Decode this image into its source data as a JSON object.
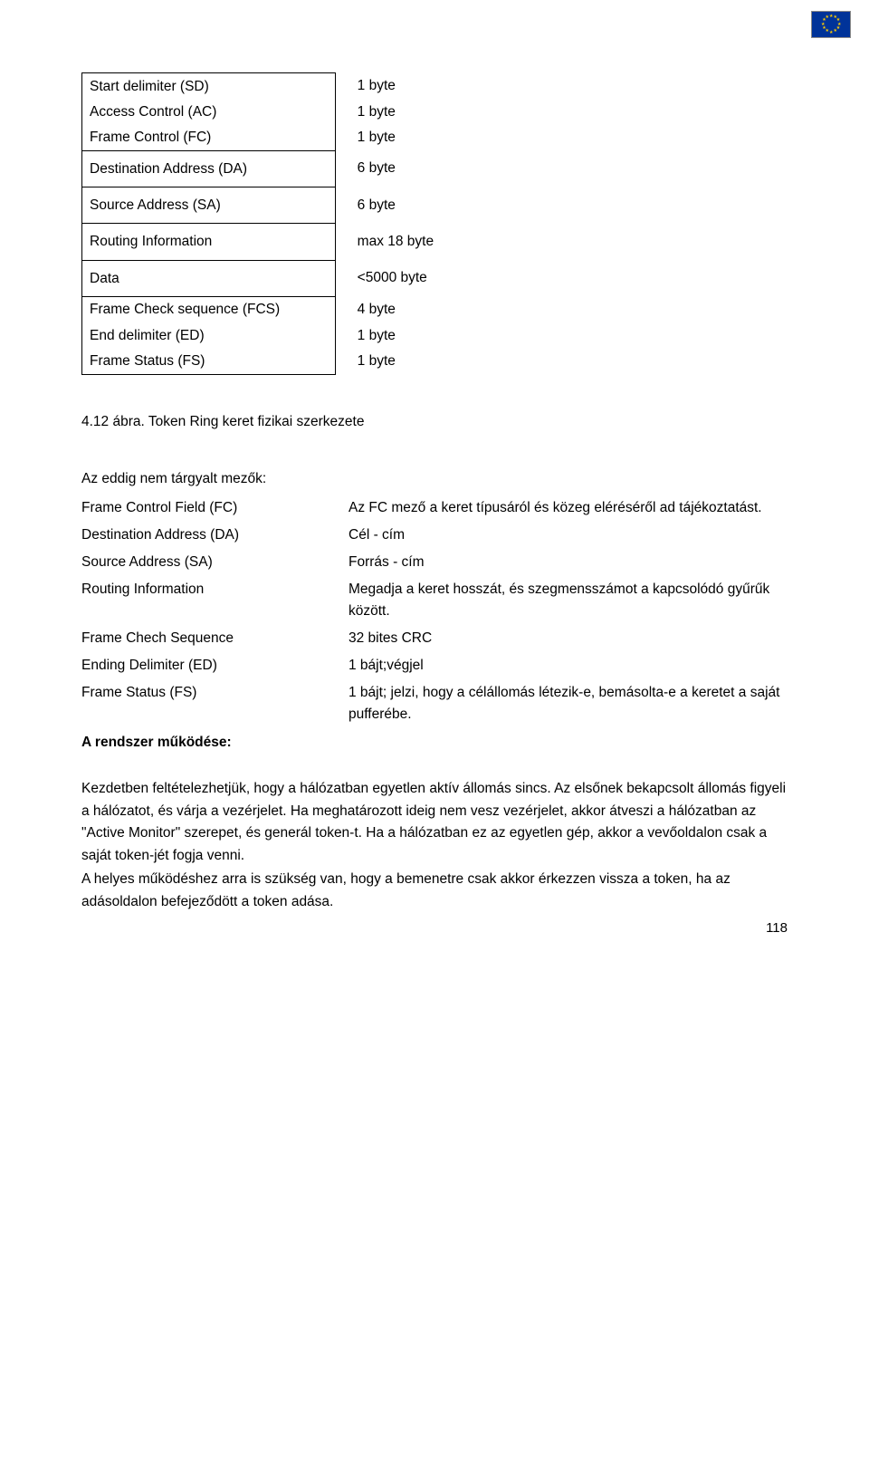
{
  "flag_name": "eu-flag",
  "frame_rows": [
    {
      "group": "g1",
      "field": "Start delimiter (SD)",
      "value": "1 byte"
    },
    {
      "group": "g1",
      "field": "Access Control (AC)",
      "value": "1 byte"
    },
    {
      "group": "g1",
      "field": "Frame Control (FC)",
      "value": "1 byte"
    },
    {
      "group": "g2",
      "field": "Destination Address (DA)",
      "value": "6 byte"
    },
    {
      "group": "g3",
      "field": "Source Address (SA)",
      "value": "6 byte"
    },
    {
      "group": "g4",
      "field": "Routing Information",
      "value": "max 18 byte"
    },
    {
      "group": "g5",
      "field": "Data",
      "value": "<5000 byte"
    },
    {
      "group": "g6",
      "field": "Frame Check sequence (FCS)",
      "value": "4 byte"
    },
    {
      "group": "g6",
      "field": "End delimiter (ED)",
      "value": "1 byte"
    },
    {
      "group": "g6",
      "field": "Frame Status (FS)",
      "value": "1 byte"
    }
  ],
  "caption": "4.12 ábra. Token Ring keret fizikai szerkezete",
  "fields_intro": "Az eddig nem tárgyalt mezők:",
  "field_defs": [
    {
      "k": "Frame Control Field (FC)",
      "v": "Az FC mező a keret típusáról és közeg eléréséről ad tájékoztatást."
    },
    {
      "k": "Destination Address (DA)",
      "v": "Cél - cím"
    },
    {
      "k": "Source Address (SA)",
      "v": "Forrás - cím"
    },
    {
      "k": "Routing Information",
      "v": "Megadja a keret hosszát, és szegmensszámot a kapcsolódó gyűrűk között."
    },
    {
      "k": "Frame Chech Sequence",
      "v": "32 bites CRC"
    },
    {
      "k": "Ending Delimiter (ED)",
      "v": "1 bájt;végjel"
    },
    {
      "k": "Frame Status (FS)",
      "v": "1 bájt; jelzi, hogy a célállomás létezik-e, bemásolta-e a keretet a saját pufferébe."
    }
  ],
  "system_heading": "A rendszer működése:",
  "paragraphs": [
    "Kezdetben feltételezhetjük, hogy a hálózatban egyetlen aktív állomás sincs. Az elsőnek bekapcsolt állomás figyeli a hálózatot, és várja a vezérjelet. Ha meghatározott ideig nem vesz vezérjelet, akkor átveszi a hálózatban az \"Active Monitor\" szerepet, és generál token-t. Ha a hálózatban ez az egyetlen gép, akkor a vevőoldalon csak a saját token-jét fogja venni.",
    "A helyes működéshez arra is szükség van, hogy a bemenetre csak akkor érkezzen vissza a token, ha az adásoldalon befejeződött a token adása."
  ],
  "page_number": "118"
}
